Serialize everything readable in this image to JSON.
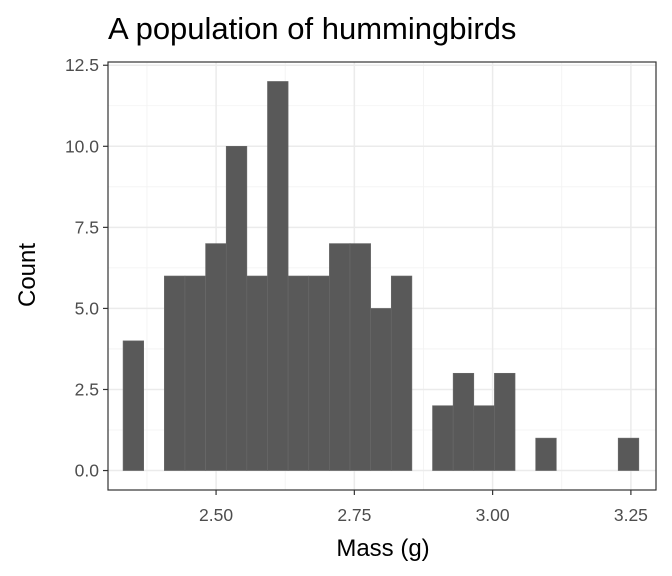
{
  "chart_data": {
    "type": "bar",
    "title": "A population of hummingbirds",
    "xlabel": "Mass (g)",
    "ylabel": "Count",
    "xlim": [
      2.3046,
      3.2954
    ],
    "ylim": [
      -0.6,
      12.6
    ],
    "xticks": [
      {
        "value": 2.5,
        "label": "2.50"
      },
      {
        "value": 2.75,
        "label": "2.75"
      },
      {
        "value": 3.0,
        "label": "3.00"
      },
      {
        "value": 3.25,
        "label": "3.25"
      }
    ],
    "yticks": [
      {
        "value": 0,
        "label": "0.0"
      },
      {
        "value": 2.5,
        "label": "2.5"
      },
      {
        "value": 5,
        "label": "5.0"
      },
      {
        "value": 7.5,
        "label": "7.5"
      },
      {
        "value": 10,
        "label": "10.0"
      },
      {
        "value": 12.5,
        "label": "12.5"
      }
    ],
    "bin_width": 0.0373,
    "bins": [
      {
        "x": 2.3505,
        "count": 4
      },
      {
        "x": 2.3878,
        "count": 0
      },
      {
        "x": 2.4251,
        "count": 6
      },
      {
        "x": 2.4624,
        "count": 6
      },
      {
        "x": 2.4997,
        "count": 7
      },
      {
        "x": 2.537,
        "count": 10
      },
      {
        "x": 2.5743,
        "count": 6
      },
      {
        "x": 2.6116,
        "count": 12
      },
      {
        "x": 2.6489,
        "count": 6
      },
      {
        "x": 2.6862,
        "count": 6
      },
      {
        "x": 2.7235,
        "count": 7
      },
      {
        "x": 2.7608,
        "count": 7
      },
      {
        "x": 2.7981,
        "count": 5
      },
      {
        "x": 2.8354,
        "count": 6
      },
      {
        "x": 2.8727,
        "count": 0
      },
      {
        "x": 2.91,
        "count": 2
      },
      {
        "x": 2.9473,
        "count": 3
      },
      {
        "x": 2.9846,
        "count": 2
      },
      {
        "x": 3.0219,
        "count": 3
      },
      {
        "x": 3.0592,
        "count": 0
      },
      {
        "x": 3.0965,
        "count": 1
      },
      {
        "x": 3.1338,
        "count": 0
      },
      {
        "x": 3.1711,
        "count": 0
      },
      {
        "x": 3.2084,
        "count": 0
      },
      {
        "x": 3.2457,
        "count": 1
      }
    ],
    "bar_color": "#595959",
    "grid": true,
    "legend": "none"
  }
}
